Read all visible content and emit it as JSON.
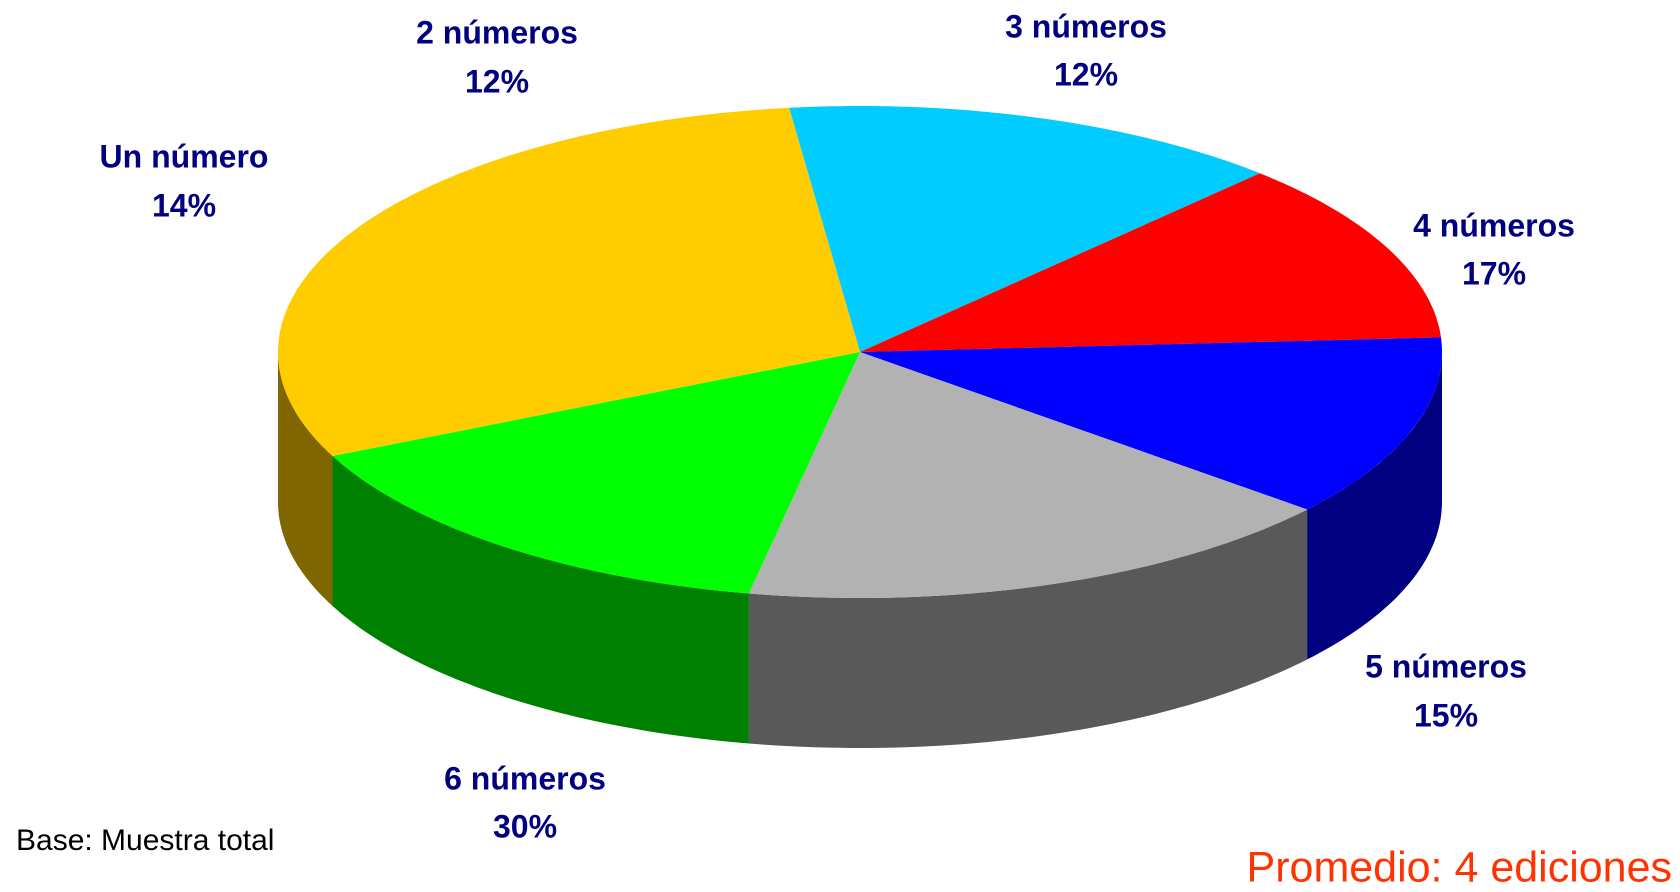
{
  "chart_data": {
    "type": "pie",
    "categories": [
      "Un número",
      "2 números",
      "3 números",
      "4 números",
      "5 números",
      "6 números"
    ],
    "values": [
      14,
      12,
      12,
      17,
      15,
      30
    ],
    "value_labels": [
      "14%",
      "12%",
      "12%",
      "17%",
      "15%",
      "30%"
    ],
    "colors": [
      "#00ccff",
      "#ff0000",
      "#0000ff",
      "#b2b2b2",
      "#00ff00",
      "#ffcc00"
    ],
    "annotations": [
      "Base: Muestra total",
      "Promedio: 4 ediciones"
    ]
  }
}
